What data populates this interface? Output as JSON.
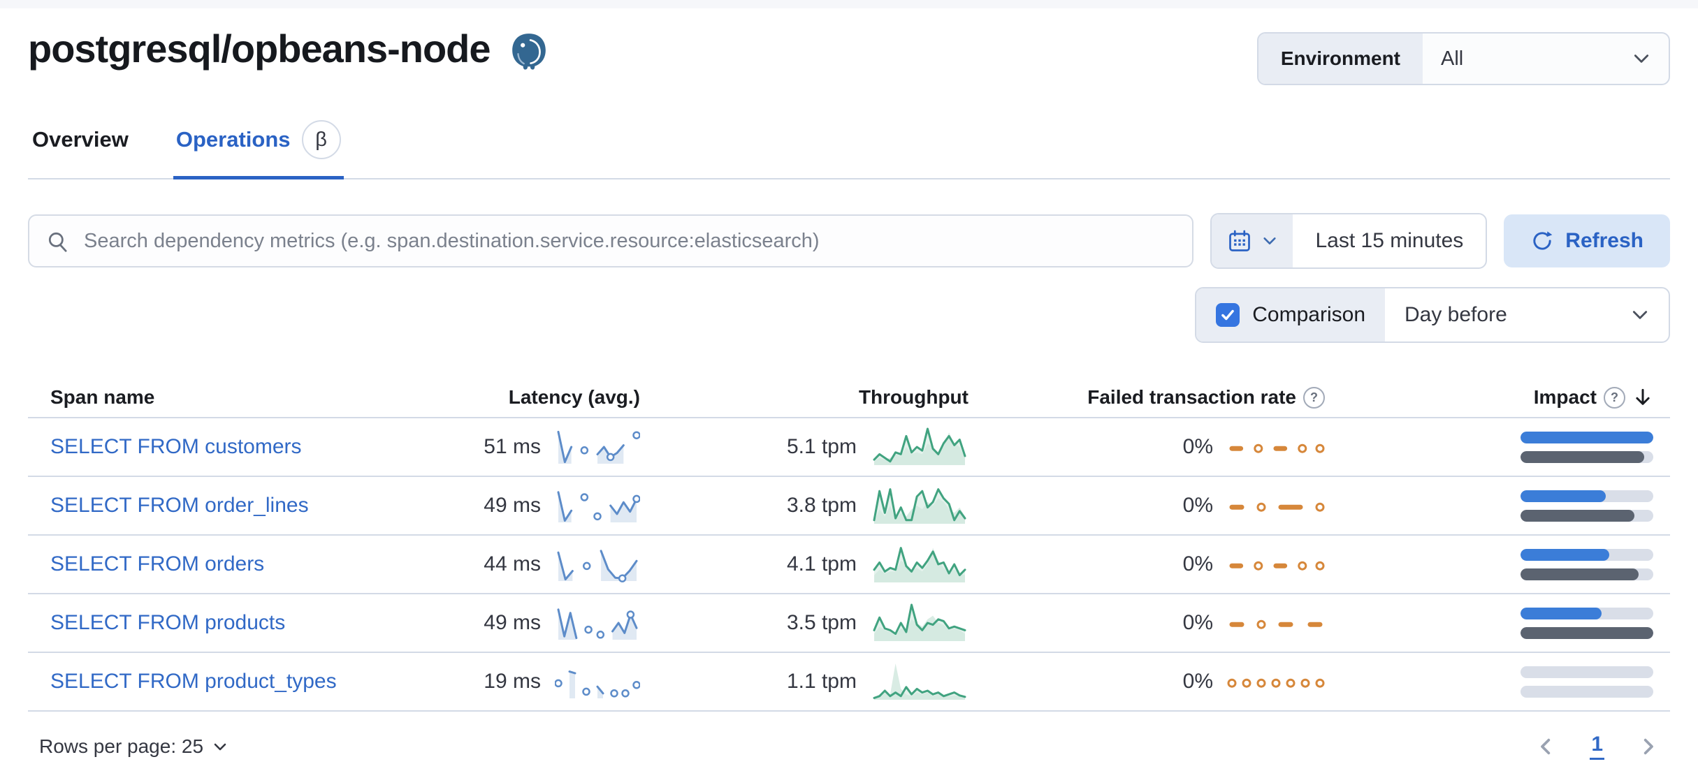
{
  "page_title": "postgresql/opbeans-node",
  "environment": {
    "label": "Environment",
    "value": "All"
  },
  "tabs": {
    "overview": "Overview",
    "operations": "Operations",
    "beta_badge": "β"
  },
  "toolbar": {
    "search_placeholder": "Search dependency metrics (e.g. span.destination.service.resource:elasticsearch)",
    "time_range": "Last 15 minutes",
    "refresh_label": "Refresh"
  },
  "comparison": {
    "label": "Comparison",
    "checked": true,
    "selected": "Day before"
  },
  "table": {
    "headers": {
      "span_name": "Span name",
      "latency": "Latency (avg.)",
      "throughput": "Throughput",
      "failed_rate": "Failed transaction rate",
      "impact": "Impact"
    },
    "rows": [
      {
        "span_name": "SELECT FROM customers",
        "latency": "51 ms",
        "throughput": "5.1 tpm",
        "failed_rate": "0%",
        "impact": {
          "current": 100,
          "previous": 93
        },
        "sparks": {
          "latency": [
            0.95,
            0.05,
            0.5,
            null,
            0.4,
            null,
            0.28,
            0.5,
            0.2,
            0.32,
            0.55,
            null,
            0.85
          ],
          "latency_markers": [
            8
          ],
          "throughput": [
            0.15,
            0.3,
            0.2,
            0.1,
            0.35,
            0.3,
            0.8,
            0.35,
            0.5,
            0.4,
            1.0,
            0.45,
            0.3,
            0.6,
            0.8,
            0.55,
            0.7,
            0.25
          ],
          "throughput_compare": [
            0.1,
            0.2,
            0.15,
            0.2,
            0.3,
            0.25,
            0.5,
            0.3,
            0.35,
            0.3,
            0.6,
            0.5,
            0.35,
            0.5,
            0.9,
            0.6,
            0.5,
            0.2
          ],
          "failed": [
            0,
            0,
            null,
            0,
            null,
            0,
            0,
            null,
            0,
            null,
            0
          ]
        }
      },
      {
        "span_name": "SELECT FROM order_lines",
        "latency": "49 ms",
        "throughput": "3.8 tpm",
        "failed_rate": "0%",
        "impact": {
          "current": 64,
          "previous": 86
        },
        "sparks": {
          "latency": [
            0.9,
            0.05,
            0.35,
            null,
            0.75,
            null,
            0.18,
            null,
            0.5,
            0.25,
            0.6,
            0.32,
            0.7
          ],
          "latency_markers": [
            12
          ],
          "throughput": [
            0.1,
            0.9,
            0.3,
            0.95,
            0.15,
            0.45,
            0.1,
            0.1,
            0.75,
            0.9,
            0.45,
            0.6,
            0.95,
            0.7,
            0.55,
            0.1,
            0.35,
            0.15
          ],
          "throughput_compare": [
            0.05,
            0.4,
            0.2,
            0.5,
            0.1,
            0.3,
            0.2,
            0.4,
            0.5,
            0.4,
            0.6,
            0.5,
            0.7,
            0.6,
            0.4,
            0.3,
            0.45,
            0.2
          ],
          "failed": [
            0,
            0,
            null,
            0,
            null,
            0,
            0,
            0,
            null,
            0
          ]
        }
      },
      {
        "span_name": "SELECT FROM orders",
        "latency": "44 ms",
        "throughput": "4.1 tpm",
        "failed_rate": "0%",
        "impact": {
          "current": 67,
          "previous": 89
        },
        "sparks": {
          "latency": [
            0.85,
            0.05,
            0.3,
            null,
            0.45,
            null,
            0.9,
            0.35,
            0.1,
            0.08,
            0.3,
            0.6
          ],
          "latency_markers": [
            9
          ],
          "throughput": [
            0.35,
            0.55,
            0.3,
            0.4,
            0.35,
            0.95,
            0.45,
            0.3,
            0.55,
            0.4,
            0.6,
            0.85,
            0.5,
            0.55,
            0.25,
            0.5,
            0.2,
            0.35
          ],
          "throughput_compare": [
            0.2,
            0.35,
            0.25,
            0.3,
            0.3,
            0.6,
            0.5,
            0.35,
            0.4,
            0.3,
            0.5,
            0.95,
            0.6,
            0.4,
            0.3,
            0.35,
            0.25,
            0.2
          ],
          "failed": [
            0,
            0,
            null,
            0,
            null,
            0,
            0,
            null,
            0,
            null,
            0
          ]
        }
      },
      {
        "span_name": "SELECT FROM products",
        "latency": "49 ms",
        "throughput": "3.5 tpm",
        "failed_rate": "0%",
        "impact": {
          "current": 61,
          "previous": 100
        },
        "sparks": {
          "latency": [
            0.9,
            0.1,
            0.8,
            0.05,
            null,
            0.3,
            null,
            0.15,
            null,
            0.25,
            0.5,
            0.2,
            0.75,
            0.35
          ],
          "latency_markers": [
            12
          ],
          "throughput": [
            0.3,
            0.65,
            0.35,
            0.3,
            0.2,
            0.5,
            0.25,
            1.0,
            0.45,
            0.3,
            0.5,
            0.45,
            0.6,
            0.55,
            0.35,
            0.4,
            0.35,
            0.3
          ],
          "throughput_compare": [
            0.2,
            0.4,
            0.3,
            0.25,
            0.15,
            0.35,
            0.3,
            0.6,
            0.5,
            0.4,
            0.6,
            0.7,
            0.5,
            0.45,
            0.3,
            0.35,
            0.3,
            0.2
          ],
          "failed": [
            0,
            0,
            null,
            0,
            null,
            0,
            0,
            null,
            0,
            0
          ]
        }
      },
      {
        "span_name": "SELECT FROM product_types",
        "latency": "19 ms",
        "throughput": "1.1 tpm",
        "failed_rate": "0%",
        "impact": {
          "current": 0,
          "previous": 0
        },
        "sparks": {
          "latency": [
            0.45,
            null,
            0.8,
            0.75,
            null,
            0.2,
            null,
            0.35,
            0.15,
            null,
            0.15,
            null,
            0.15,
            null,
            0.4
          ],
          "latency_markers": [],
          "throughput": [
            0.05,
            0.1,
            0.25,
            0.1,
            0.2,
            0.1,
            0.35,
            0.15,
            0.3,
            0.2,
            0.25,
            0.15,
            0.2,
            0.1,
            0.15,
            0.2,
            0.12,
            0.08
          ],
          "throughput_compare": [
            0.05,
            0.15,
            0.2,
            0.15,
            1.0,
            0.3,
            0.15,
            0.1,
            0.2,
            0.15,
            0.2,
            0.1,
            0.15,
            0.1,
            0.1,
            0.12,
            0.1,
            0.05
          ],
          "failed": [
            0,
            null,
            0,
            null,
            0,
            null,
            0,
            null,
            0,
            null,
            0,
            null,
            0
          ]
        }
      }
    ]
  },
  "pagination": {
    "rows_per_page": "Rows per page: 25",
    "page": "1"
  },
  "icons": {
    "help_glyph": "?"
  },
  "colors": {
    "accent_blue": "#2a62c4",
    "link_blue": "#3169c6",
    "latency_spark": "#5d8cc9",
    "latency_fill": "#dde7f2",
    "throughput_spark": "#41a380",
    "throughput_fill": "#d2e9df",
    "failed_spark": "#d6873a",
    "impact_current": "#3b7dd8",
    "impact_previous": "#5b6370",
    "impact_track": "#d9dee8"
  }
}
